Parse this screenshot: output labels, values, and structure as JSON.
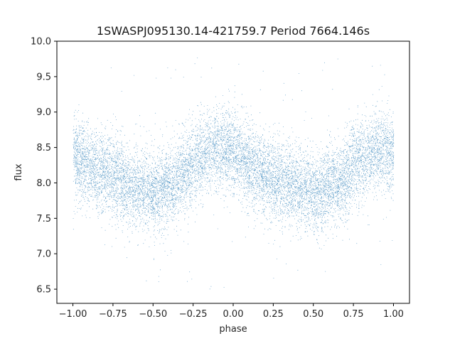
{
  "chart_data": {
    "type": "scatter",
    "title": "1SWASPJ095130.14-421759.7 Period 7664.146s",
    "xlabel": "phase",
    "ylabel": "flux",
    "xlim": [
      -1.1,
      1.1
    ],
    "ylim": [
      6.3,
      10.0
    ],
    "xticks": [
      -1.0,
      -0.75,
      -0.5,
      -0.25,
      0.0,
      0.25,
      0.5,
      0.75,
      1.0
    ],
    "xtick_labels": [
      "−1.00",
      "−0.75",
      "−0.50",
      "−0.25",
      "0.00",
      "0.25",
      "0.50",
      "0.75",
      "1.00"
    ],
    "yticks": [
      6.5,
      7.0,
      7.5,
      8.0,
      8.5,
      9.0,
      9.5,
      10.0
    ],
    "ytick_labels": [
      "6.5",
      "7.0",
      "7.5",
      "8.0",
      "8.5",
      "9.0",
      "9.5",
      "10.0"
    ],
    "grid": false,
    "marker_color": "#1f77b4",
    "series": [
      {
        "trend_x": [
          -1.0,
          -0.8,
          -0.65,
          -0.5,
          -0.4,
          -0.3,
          -0.2,
          -0.1,
          0.0,
          0.1,
          0.2,
          0.35,
          0.5,
          0.65,
          0.8,
          0.9,
          1.0
        ],
        "trend_y": [
          8.35,
          8.15,
          7.98,
          7.88,
          7.95,
          8.15,
          8.4,
          8.5,
          8.45,
          8.25,
          8.1,
          7.98,
          7.85,
          8.0,
          8.35,
          8.45,
          8.42
        ],
        "scatter_sd": 0.28,
        "approx_points": 12000
      }
    ]
  }
}
